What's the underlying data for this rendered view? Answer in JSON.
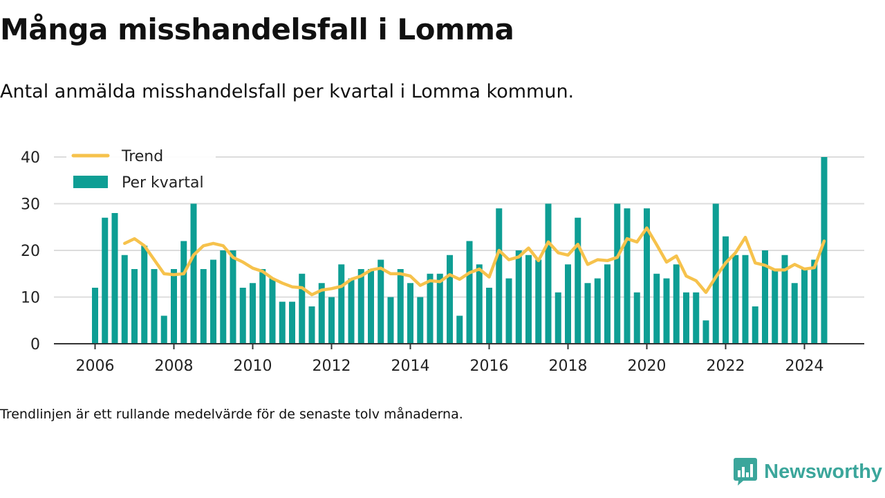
{
  "title": "Många misshandelsfall i Lomma",
  "subtitle": "Antal anmälda misshandelsfall per kvartal i Lomma kommun.",
  "footnote": "Trendlinjen är ett rullande medelvärde för de senaste tolv månaderna.",
  "brand": {
    "name": "Newsworthy",
    "logo_icon": "bar-chart-icon",
    "color": "#3ba69b"
  },
  "chart_data": {
    "type": "bar",
    "bar_color": "#0e9e94",
    "line_color": "#f6c24c",
    "ylim": [
      0,
      40
    ],
    "yticks": [
      0,
      10,
      20,
      30,
      40
    ],
    "xtick_labels": [
      "2006",
      "2008",
      "2010",
      "2012",
      "2014",
      "2016",
      "2018",
      "2020",
      "2022",
      "2024"
    ],
    "grid": true,
    "legend": {
      "placement": "top-left",
      "entries": [
        {
          "label": "Trend",
          "kind": "line"
        },
        {
          "label": "Per kvartal",
          "kind": "bar"
        }
      ]
    },
    "start": {
      "year": 2006,
      "quarter": 1
    },
    "series": [
      {
        "name": "Per kvartal",
        "kind": "bar",
        "values": [
          12,
          27,
          28,
          19,
          16,
          21,
          16,
          6,
          16,
          22,
          30,
          16,
          18,
          20,
          20,
          12,
          13,
          16,
          14,
          9,
          9,
          15,
          8,
          13,
          10,
          17,
          14,
          16,
          16,
          18,
          10,
          16,
          13,
          10,
          15,
          15,
          19,
          6,
          22,
          17,
          12,
          29,
          14,
          20,
          19,
          18,
          30,
          11,
          17,
          27,
          13,
          14,
          17,
          30,
          29,
          11,
          29,
          15,
          14,
          17,
          11,
          11,
          5,
          30,
          23,
          19,
          19,
          8,
          20,
          16,
          19,
          13,
          16,
          18,
          40
        ]
      },
      {
        "name": "Trend",
        "kind": "line",
        "values": [
          null,
          null,
          null,
          21.5,
          22.5,
          21,
          18,
          15,
          14.8,
          15,
          19,
          21,
          21.5,
          21,
          18.5,
          17.5,
          16.2,
          15.5,
          14,
          13,
          12.2,
          12,
          10.5,
          11.5,
          11.8,
          12.3,
          13.8,
          14.5,
          15.8,
          16.2,
          15,
          15,
          14.5,
          12.5,
          13.5,
          13.3,
          14.8,
          13.8,
          15.2,
          16,
          14.3,
          20,
          18,
          18.6,
          20.5,
          17.8,
          21.8,
          19.5,
          19,
          21.3,
          17,
          18,
          17.8,
          18.5,
          22.5,
          21.8,
          24.8,
          21.2,
          17.5,
          18.8,
          14.5,
          13.5,
          11,
          14.3,
          17.3,
          19.5,
          22.8,
          17.3,
          16.8,
          15.8,
          15.8,
          17,
          16,
          16.3,
          22
        ]
      }
    ]
  }
}
